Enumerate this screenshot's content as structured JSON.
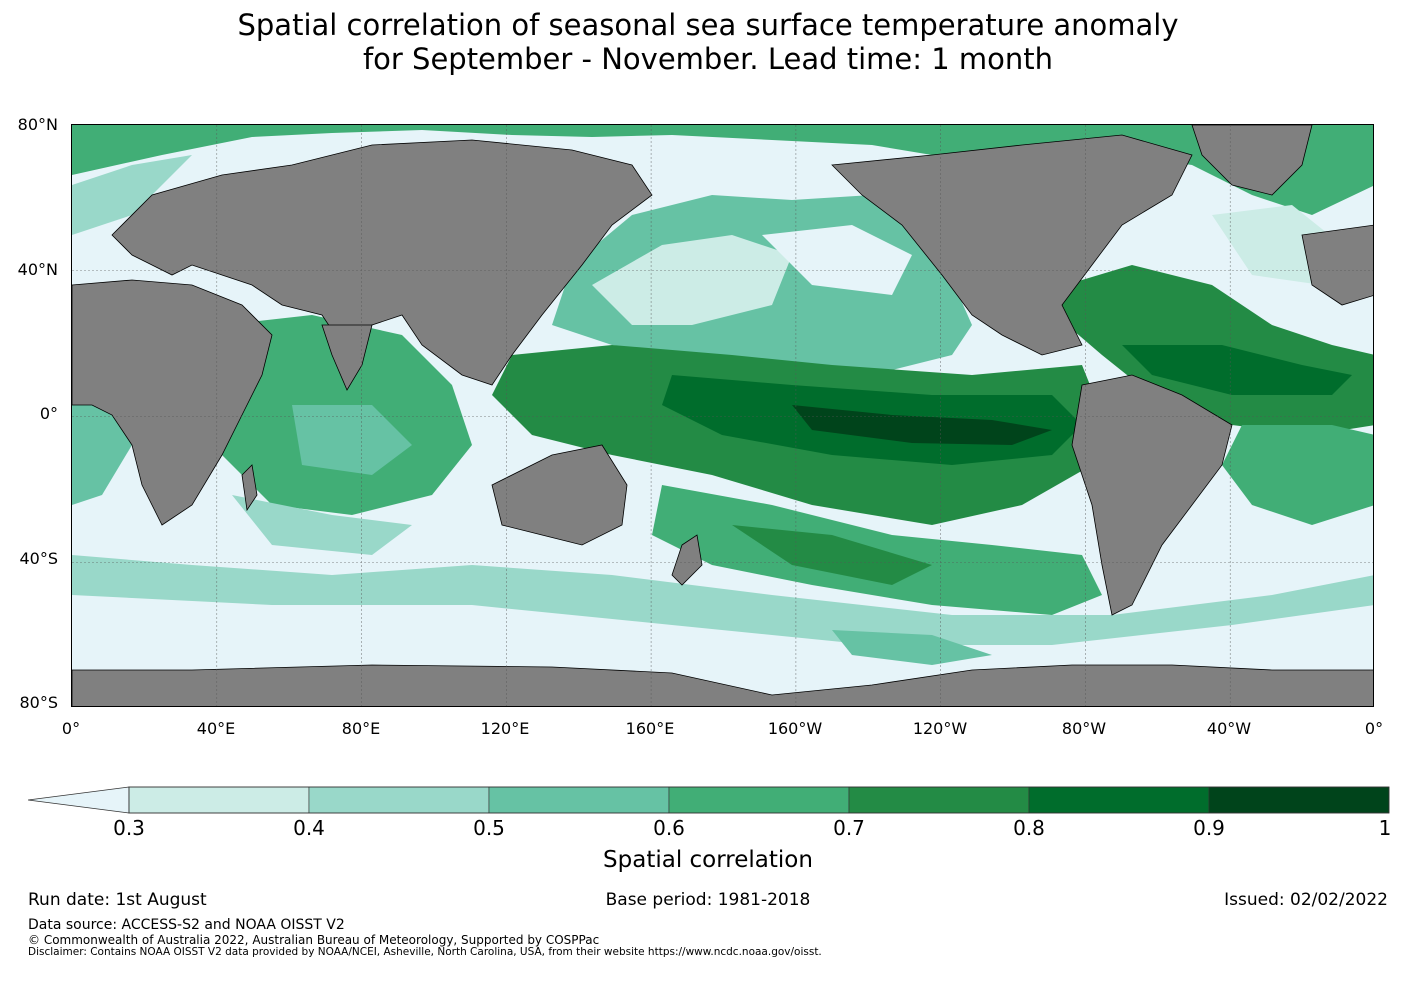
{
  "title": {
    "line1": "Spatial correlation of seasonal sea surface temperature anomaly",
    "line2": "for September - November. Lead time: 1 month"
  },
  "map": {
    "projection": "equirectangular",
    "lon_range": [
      0,
      360
    ],
    "lat_range": [
      -80,
      80
    ],
    "land_color": "#808080",
    "ocean_low_color": "#e6f4f9",
    "lat_ticks": [
      "80°N",
      "40°N",
      "0°",
      "40°S",
      "80°S"
    ],
    "lon_ticks": [
      "0°",
      "40°E",
      "80°E",
      "120°E",
      "160°E",
      "160°W",
      "120°W",
      "80°W",
      "40°W",
      "0°"
    ]
  },
  "colorbar": {
    "label": "Spatial correlation",
    "extend": "min",
    "ticks": [
      "0.3",
      "0.4",
      "0.5",
      "0.6",
      "0.7",
      "0.8",
      "0.9",
      "1"
    ],
    "under_color": "#e6f4f9",
    "colors": [
      "#ccece6",
      "#99d8c9",
      "#66c2a4",
      "#41ae76",
      "#238b45",
      "#006d2c",
      "#00441b"
    ]
  },
  "footer": {
    "run_date": "Run date: 1st August",
    "base_period": "Base period: 1981-2018",
    "issued": "Issued: 02/02/2022",
    "data_source": "Data source: ACCESS-S2 and NOAA OISST V2",
    "copyright": "© Commonwealth of Australia 2022, Australian Bureau of Meteorology, Supported by COSPPac",
    "disclaimer": "Disclaimer: Contains NOAA OISST V2 data provided by NOAA/NCEI, Asheville, North Carolina, USA, from their website https://www.ncdc.noaa.gov/oisst."
  }
}
